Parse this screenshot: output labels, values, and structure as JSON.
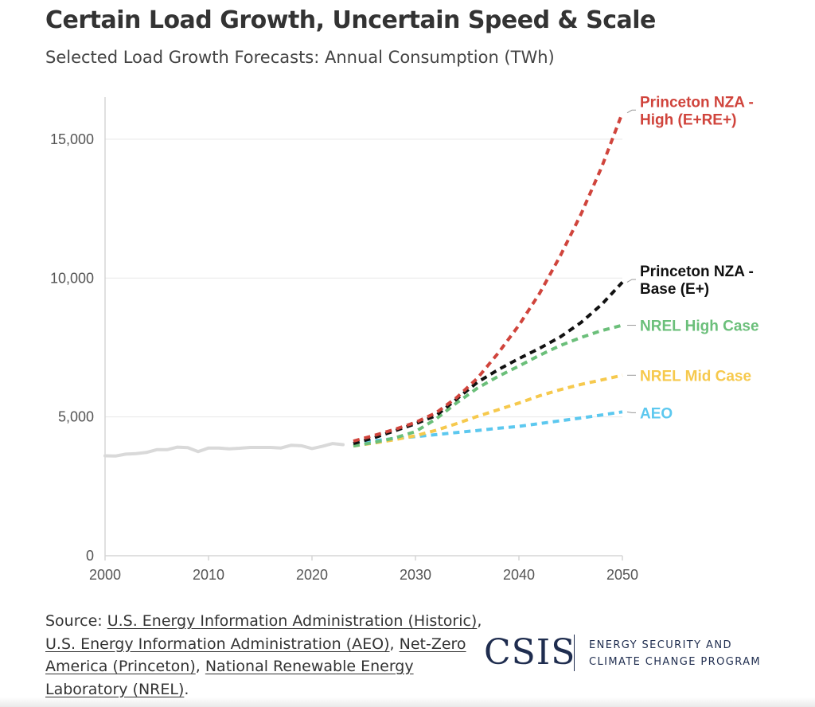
{
  "title": "Certain Load Growth, Uncertain Speed & Scale",
  "subtitle": "Selected Load Growth Forecasts: Annual Consumption (TWh)",
  "chart_data": {
    "type": "line",
    "xlim": [
      2000,
      2050
    ],
    "ylim": [
      0,
      16000
    ],
    "x_ticks": [
      2000,
      2010,
      2020,
      2030,
      2040,
      2050
    ],
    "x_tick_labels": [
      "2000",
      "2010",
      "2020",
      "2030",
      "2040",
      "2050"
    ],
    "y_ticks": [
      0,
      5000,
      10000,
      15000
    ],
    "y_tick_labels": [
      "0",
      "5,000",
      "10,000",
      "15,000"
    ],
    "grid": "horizontal",
    "legend": "direct labels at line ends",
    "series": [
      {
        "name": "",
        "color": "#d9d9d9",
        "style": "solid",
        "x": [
          2000,
          2001,
          2002,
          2003,
          2004,
          2005,
          2006,
          2007,
          2008,
          2009,
          2010,
          2011,
          2012,
          2013,
          2014,
          2015,
          2016,
          2017,
          2018,
          2019,
          2020,
          2021,
          2022,
          2023
        ],
        "y": [
          3600,
          3590,
          3660,
          3680,
          3720,
          3820,
          3820,
          3910,
          3890,
          3750,
          3880,
          3880,
          3850,
          3870,
          3900,
          3900,
          3900,
          3880,
          3980,
          3960,
          3860,
          3940,
          4040,
          4000
        ]
      },
      {
        "name": "AEO",
        "label_lines": [
          "AEO"
        ],
        "color": "#5cc8ef",
        "style": "dashed",
        "label_y": 5150,
        "x": [
          2024,
          2026,
          2028,
          2030,
          2032,
          2034,
          2036,
          2038,
          2040,
          2042,
          2044,
          2046,
          2048,
          2050
        ],
        "y": [
          4060,
          4140,
          4220,
          4290,
          4360,
          4440,
          4510,
          4590,
          4660,
          4760,
          4860,
          4960,
          5070,
          5180
        ]
      },
      {
        "name": "NREL Mid Case",
        "label_lines": [
          "NREL Mid Case"
        ],
        "color": "#f6c94d",
        "style": "dashed",
        "label_y": 6500,
        "x": [
          2024,
          2026,
          2028,
          2030,
          2032,
          2034,
          2036,
          2038,
          2040,
          2042,
          2044,
          2046,
          2048,
          2050
        ],
        "y": [
          3950,
          4060,
          4180,
          4320,
          4520,
          4760,
          5020,
          5260,
          5500,
          5760,
          5980,
          6170,
          6330,
          6500
        ]
      },
      {
        "name": "NREL High Case",
        "label_lines": [
          "NREL High Case"
        ],
        "color": "#6bbf7a",
        "style": "dashed",
        "label_y": 8300,
        "x": [
          2024,
          2026,
          2028,
          2030,
          2032,
          2034,
          2036,
          2038,
          2040,
          2042,
          2044,
          2046,
          2048,
          2050
        ],
        "y": [
          3950,
          4080,
          4240,
          4470,
          4930,
          5510,
          6040,
          6460,
          6830,
          7220,
          7570,
          7860,
          8110,
          8300
        ]
      },
      {
        "name": "Princeton NZA - Base (E+)",
        "label_lines": [
          "Princeton NZA -",
          "Base (E+)"
        ],
        "color": "#111111",
        "style": "dashed",
        "label_y": 9950,
        "x": [
          2024,
          2026,
          2028,
          2030,
          2032,
          2034,
          2036,
          2038,
          2040,
          2042,
          2044,
          2046,
          2048,
          2050
        ],
        "y": [
          4040,
          4250,
          4500,
          4750,
          5050,
          5650,
          6250,
          6700,
          7100,
          7470,
          7880,
          8400,
          9050,
          9850
        ]
      },
      {
        "name": "Princeton NZA - High (E+RE+)",
        "label_lines": [
          "Princeton NZA -",
          "High (E+RE+)"
        ],
        "color": "#d0443c",
        "style": "dashed",
        "label_y": 16050,
        "x": [
          2024,
          2026,
          2028,
          2030,
          2032,
          2034,
          2036,
          2038,
          2040,
          2042,
          2044,
          2046,
          2048,
          2050
        ],
        "y": [
          4130,
          4330,
          4550,
          4800,
          5150,
          5700,
          6400,
          7300,
          8300,
          9450,
          10800,
          12300,
          14000,
          15950
        ]
      }
    ]
  },
  "source": {
    "prefix": "Source: ",
    "links": [
      "U.S. Energy Information Administration (Historic)",
      "U.S. Energy Information Administration (AEO)",
      "Net-Zero America (Princeton)",
      "National Renewable Energy Laboratory (NREL)"
    ],
    "separator": ", ",
    "suffix": "."
  },
  "logo": {
    "wordmark": "CSIS",
    "program_line1": "ENERGY SECURITY AND",
    "program_line2": "CLIMATE CHANGE PROGRAM",
    "color": "#1f2d4f"
  }
}
